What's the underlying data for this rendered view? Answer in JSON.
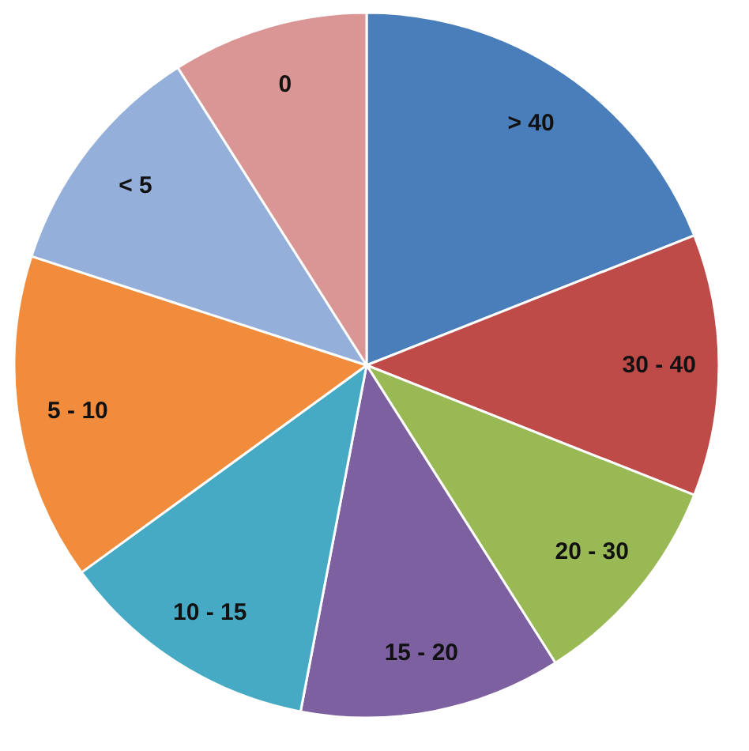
{
  "chart_data": {
    "type": "pie",
    "categories": [
      "> 40",
      "30 - 40",
      "20 - 30",
      "15 - 20",
      "10 - 15",
      "5 - 10",
      "< 5",
      "0"
    ],
    "values": [
      19,
      12,
      10,
      12,
      12,
      15,
      11,
      9
    ],
    "colors": [
      "#4a7ebb",
      "#be4b48",
      "#98b954",
      "#7d60a0",
      "#46aac5",
      "#f08c3c",
      "#94b0da",
      "#d99694"
    ]
  }
}
